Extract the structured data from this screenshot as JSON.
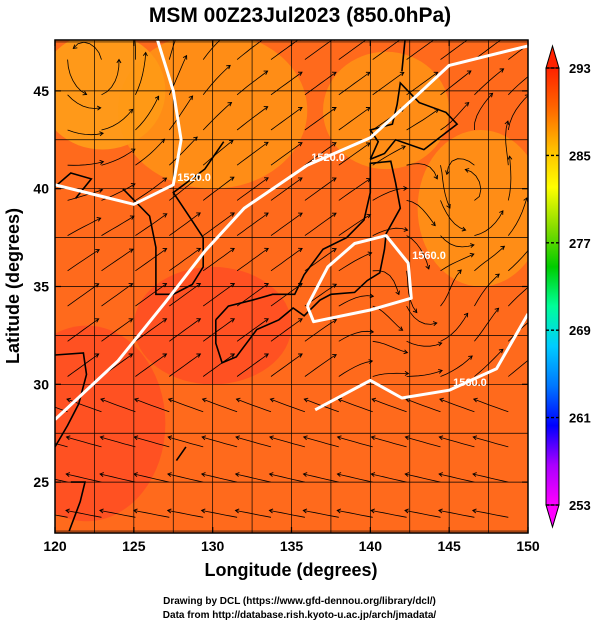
{
  "chart_data": {
    "type": "heatmap",
    "title": "MSM 00Z23Jul2023 (850.0hPa)",
    "xlabel": "Longitude (degrees)",
    "ylabel": "Latitude  (degrees)",
    "xlim": [
      120,
      150
    ],
    "ylim": [
      22.4,
      47.6
    ],
    "x_ticks": [
      120,
      125,
      130,
      135,
      140,
      145,
      150
    ],
    "y_ticks": [
      25,
      30,
      35,
      40,
      45
    ],
    "grid": true,
    "colorbar": {
      "min": 253,
      "max": 293,
      "ticks": [
        253,
        261,
        269,
        277,
        285,
        293
      ],
      "colors": [
        "#ff00ff",
        "#aa00ff",
        "#0000ff",
        "#0077ff",
        "#00ccff",
        "#00ff99",
        "#00cc00",
        "#88dd00",
        "#ffff00",
        "#ffbb00",
        "#ff6600",
        "#ff2200"
      ]
    },
    "field_colors": {
      "warm": "#ff4a24",
      "mid": "#ff6a1c",
      "cool": "#ff9a14",
      "coolest": "#ffaa18"
    },
    "contours": [
      {
        "label": "1520.0",
        "points": [
          [
            120,
            28.2
          ],
          [
            124,
            31.2
          ],
          [
            127,
            34.2
          ],
          [
            129.5,
            36.8
          ],
          [
            132,
            39
          ],
          [
            136,
            41.2
          ],
          [
            140,
            42.6
          ],
          [
            143,
            44.8
          ],
          [
            145,
            46.3
          ],
          [
            150,
            47.3
          ]
        ]
      },
      {
        "label": "1520.0",
        "points": [
          [
            120,
            40.2
          ],
          [
            123,
            39.6
          ],
          [
            125,
            39.2
          ],
          [
            127.5,
            40.2
          ],
          [
            128,
            42.5
          ],
          [
            127.5,
            45
          ],
          [
            126.5,
            47.6
          ]
        ]
      },
      {
        "label": "1560.0",
        "points": [
          [
            136,
            34
          ],
          [
            137.3,
            36
          ],
          [
            139,
            37.2
          ],
          [
            141,
            37.6
          ],
          [
            142.4,
            36.2
          ],
          [
            142.6,
            34.4
          ],
          [
            140,
            33.8
          ],
          [
            136.4,
            33.2
          ],
          [
            136,
            34
          ]
        ]
      },
      {
        "label": "1560.0",
        "points": [
          [
            136.5,
            28.7
          ],
          [
            140,
            30.2
          ],
          [
            142,
            29.3
          ],
          [
            145,
            29.7
          ],
          [
            148,
            30.8
          ],
          [
            150,
            33.6
          ]
        ]
      }
    ],
    "labels_on_contours": [
      "1520.0",
      "1520.0",
      "1560.0",
      "1560.0"
    ]
  },
  "credits": {
    "line1": "Drawing by DCL (https://www.gfd-dennou.org/library/dcl/)",
    "line2": "Data from http://database.rish.kyoto-u.ac.jp/arch/jmadata/"
  }
}
